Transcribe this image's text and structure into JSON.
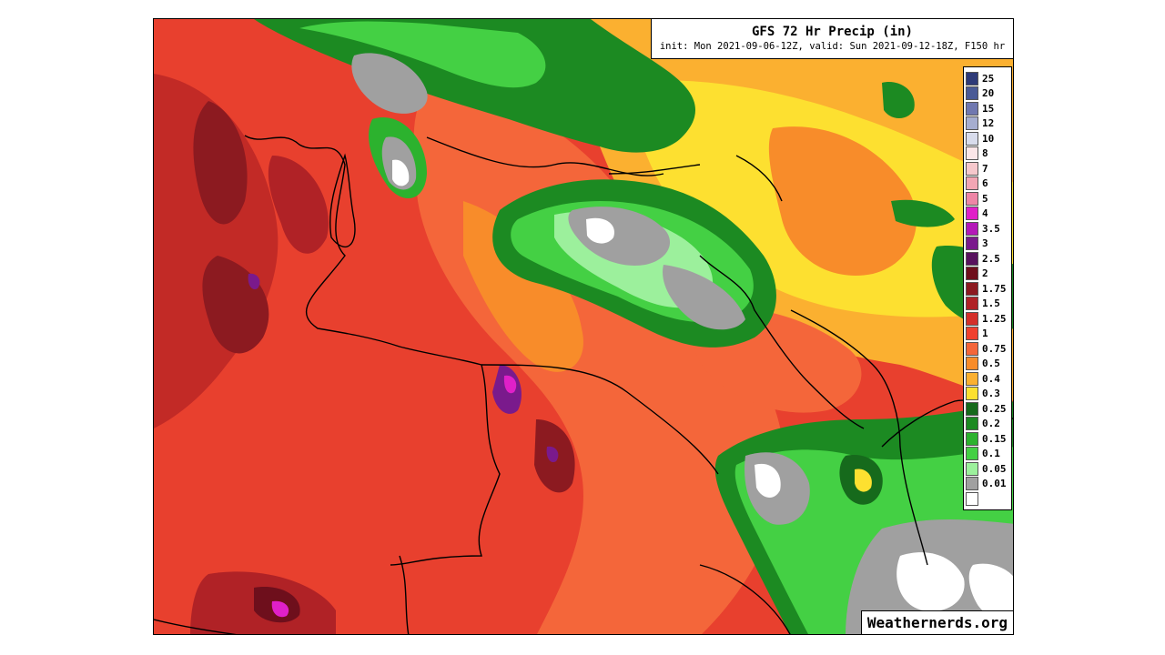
{
  "title": {
    "main": "GFS 72 Hr Precip (in)",
    "sub": "init: Mon 2021-09-06-12Z, valid: Sun 2021-09-12-18Z, F150 hr"
  },
  "legend": {
    "items": [
      {
        "label": "25",
        "color": "#2e3a78"
      },
      {
        "label": "20",
        "color": "#4a5a96"
      },
      {
        "label": "15",
        "color": "#7078b0"
      },
      {
        "label": "12",
        "color": "#a6aed0"
      },
      {
        "label": "10",
        "color": "#d8dcec"
      },
      {
        "label": "8",
        "color": "#fbe6e8"
      },
      {
        "label": "7",
        "color": "#f6c8cc"
      },
      {
        "label": "6",
        "color": "#f2a6b4"
      },
      {
        "label": "5",
        "color": "#ee86a6"
      },
      {
        "label": "4",
        "color": "#e020c8"
      },
      {
        "label": "3.5",
        "color": "#b418b8"
      },
      {
        "label": "3",
        "color": "#7a1a8c"
      },
      {
        "label": "2.5",
        "color": "#58125e"
      },
      {
        "label": "2",
        "color": "#6e0f1c"
      },
      {
        "label": "1.75",
        "color": "#8c1a20"
      },
      {
        "label": "1.5",
        "color": "#b02226"
      },
      {
        "label": "1.25",
        "color": "#d4302a"
      },
      {
        "label": "1",
        "color": "#f0402e"
      },
      {
        "label": "0.75",
        "color": "#f4663a"
      },
      {
        "label": "0.5",
        "color": "#f88c2a"
      },
      {
        "label": "0.4",
        "color": "#fbb030"
      },
      {
        "label": "0.3",
        "color": "#fde030"
      },
      {
        "label": "0.25",
        "color": "#166a1c"
      },
      {
        "label": "0.2",
        "color": "#1c8a22"
      },
      {
        "label": "0.15",
        "color": "#2cb22e"
      },
      {
        "label": "0.1",
        "color": "#44d044"
      },
      {
        "label": "0.05",
        "color": "#9cf09c"
      },
      {
        "label": "0.01",
        "color": "#a0a0a0"
      },
      {
        "label": "",
        "color": "#ffffff"
      }
    ]
  },
  "watermark": "Weathernerds.org"
}
